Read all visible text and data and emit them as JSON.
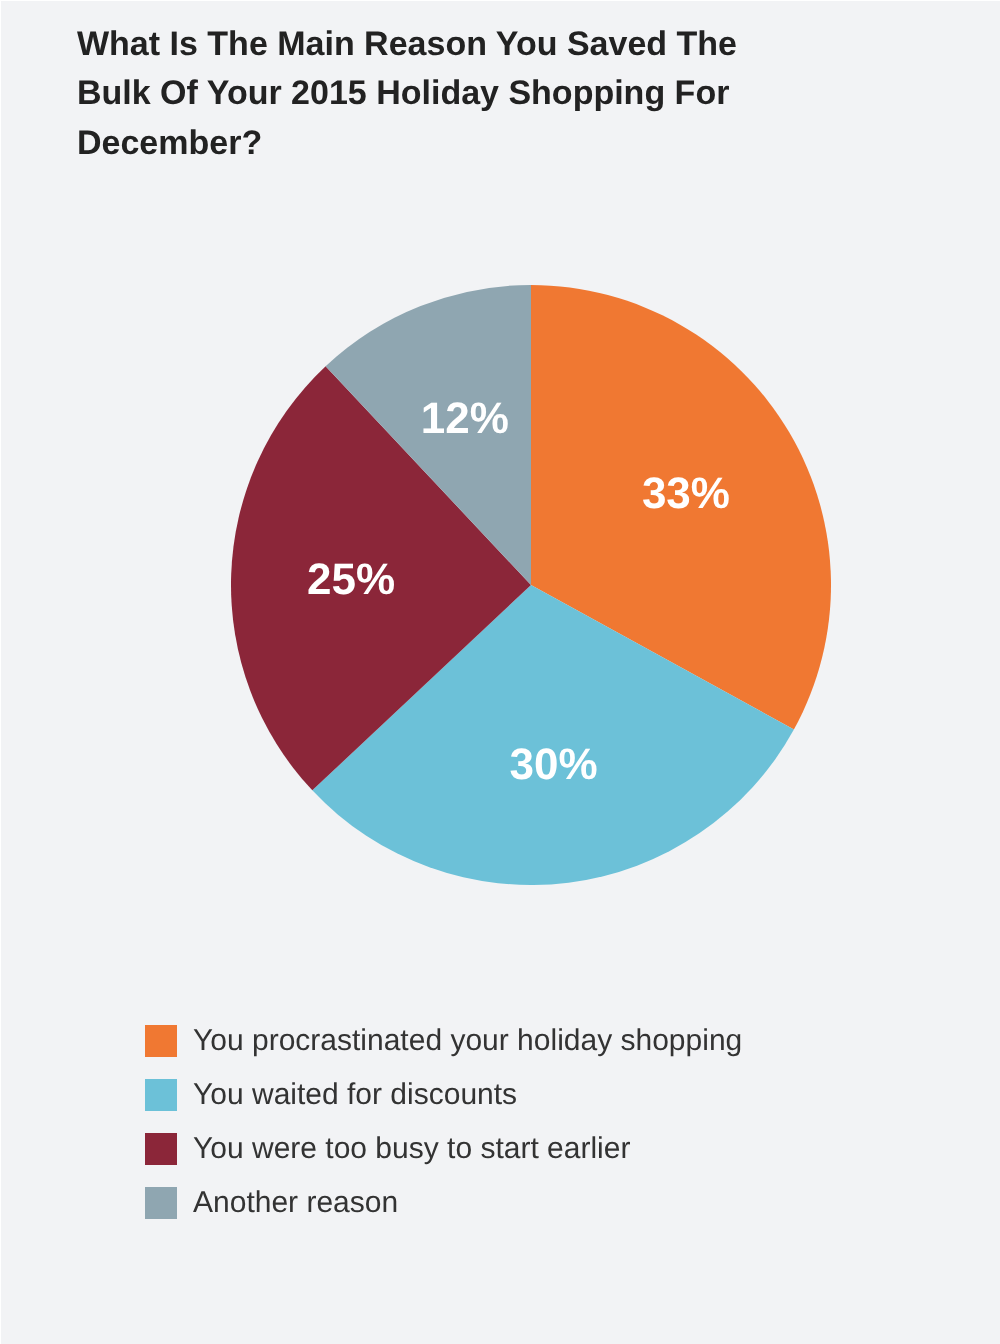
{
  "chart_data": {
    "type": "pie",
    "title": "What Is The Main Reason You Saved The Bulk Of Your 2015 Holiday Shopping For December?",
    "categories": [
      "You procrastinated your holiday shopping",
      "You waited for discounts",
      "You were too busy to start earlier",
      "Another reason"
    ],
    "values": [
      33,
      30,
      25,
      12
    ],
    "value_labels": [
      "33%",
      "30%",
      "25%",
      "12%"
    ],
    "colors": [
      "#f07832",
      "#6cc1d8",
      "#8b2639",
      "#8fa6b1"
    ],
    "legend": "bottom"
  }
}
